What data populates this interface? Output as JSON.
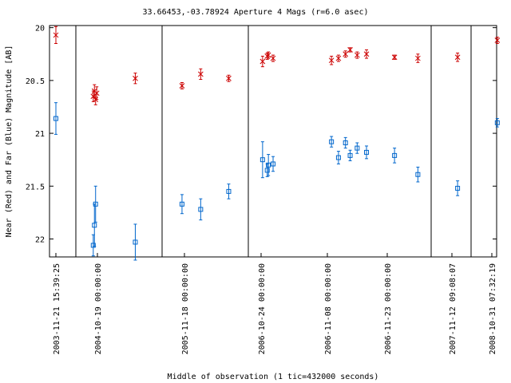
{
  "chart_data": {
    "type": "scatter",
    "title": "33.66453,-03.78924   Aperture 4 Mags (r=6.0 asec)",
    "xlabel": "Middle of observation (1 tic=432000 seconds)",
    "ylabel": "Near (Red) and Far (Blue) Magnitude [AB]",
    "ylim": [
      22.17,
      19.98
    ],
    "y_ticks": [
      20,
      20.5,
      21,
      21.5,
      22
    ],
    "y_tick_labels": [
      "20",
      "20.5",
      "21",
      "21.5",
      "22"
    ],
    "x_tick_labels": [
      "2003-11-21 15:39:25",
      "2004-10-19 00:00:00",
      "2005-11-18 00:00:00",
      "2006-10-24 00:00:00",
      "2006-11-08 00:00:00",
      "2006-11-23 00:00:00",
      "2007-11-12 09:08:07",
      "2008-10-31 07:32:19"
    ],
    "series": [
      {
        "color": "#cc0000",
        "marker": "x",
        "points": [
          {
            "x": 0,
            "y": 20.07,
            "err": 0.08
          },
          {
            "x": 1.6,
            "y": 20.65,
            "err": 0.05
          },
          {
            "x": 1.65,
            "y": 20.6,
            "err": 0.06
          },
          {
            "x": 1.7,
            "y": 20.68,
            "err": 0.05
          },
          {
            "x": 1.75,
            "y": 20.62,
            "err": 0.06
          },
          {
            "x": 3.4,
            "y": 20.48,
            "err": 0.05
          },
          {
            "x": 5.4,
            "y": 20.55,
            "err": 0.03
          },
          {
            "x": 6.2,
            "y": 20.44,
            "err": 0.05
          },
          {
            "x": 7.4,
            "y": 20.48,
            "err": 0.03
          },
          {
            "x": 8.85,
            "y": 20.32,
            "err": 0.05
          },
          {
            "x": 9.05,
            "y": 20.27,
            "err": 0.03
          },
          {
            "x": 9.1,
            "y": 20.26,
            "err": 0.03
          },
          {
            "x": 9.3,
            "y": 20.29,
            "err": 0.03
          },
          {
            "x": 11.8,
            "y": 20.31,
            "err": 0.04
          },
          {
            "x": 12.1,
            "y": 20.29,
            "err": 0.03
          },
          {
            "x": 12.4,
            "y": 20.25,
            "err": 0.03
          },
          {
            "x": 12.6,
            "y": 20.21,
            "err": 0.02
          },
          {
            "x": 12.9,
            "y": 20.26,
            "err": 0.03
          },
          {
            "x": 13.3,
            "y": 20.25,
            "err": 0.04
          },
          {
            "x": 14.5,
            "y": 20.28,
            "err": 0.02
          },
          {
            "x": 15.5,
            "y": 20.29,
            "err": 0.04
          },
          {
            "x": 17.2,
            "y": 20.28,
            "err": 0.04
          },
          {
            "x": 18.9,
            "y": 20.12,
            "err": 0.03
          }
        ]
      },
      {
        "color": "#0066cc",
        "marker": "square",
        "points": [
          {
            "x": 0,
            "y": 20.86,
            "err": 0.15
          },
          {
            "x": 1.6,
            "y": 22.06,
            "err": 0.1
          },
          {
            "x": 1.65,
            "y": 21.87,
            "err": 0.2
          },
          {
            "x": 1.7,
            "y": 21.67,
            "err": 0.17
          },
          {
            "x": 3.4,
            "y": 22.03,
            "err": 0.17
          },
          {
            "x": 5.4,
            "y": 21.67,
            "err": 0.09
          },
          {
            "x": 6.2,
            "y": 21.72,
            "err": 0.1
          },
          {
            "x": 7.4,
            "y": 21.55,
            "err": 0.07
          },
          {
            "x": 8.85,
            "y": 21.25,
            "err": 0.17
          },
          {
            "x": 9.05,
            "y": 21.35,
            "err": 0.06
          },
          {
            "x": 9.1,
            "y": 21.3,
            "err": 0.1
          },
          {
            "x": 9.3,
            "y": 21.29,
            "err": 0.07
          },
          {
            "x": 11.8,
            "y": 21.08,
            "err": 0.05
          },
          {
            "x": 12.1,
            "y": 21.23,
            "err": 0.06
          },
          {
            "x": 12.4,
            "y": 21.09,
            "err": 0.05
          },
          {
            "x": 12.6,
            "y": 21.21,
            "err": 0.05
          },
          {
            "x": 12.9,
            "y": 21.14,
            "err": 0.05
          },
          {
            "x": 13.3,
            "y": 21.18,
            "err": 0.06
          },
          {
            "x": 14.5,
            "y": 21.21,
            "err": 0.07
          },
          {
            "x": 15.5,
            "y": 21.39,
            "err": 0.07
          },
          {
            "x": 17.2,
            "y": 21.52,
            "err": 0.07
          },
          {
            "x": 18.9,
            "y": 20.9,
            "err": 0.04
          }
        ]
      }
    ]
  }
}
